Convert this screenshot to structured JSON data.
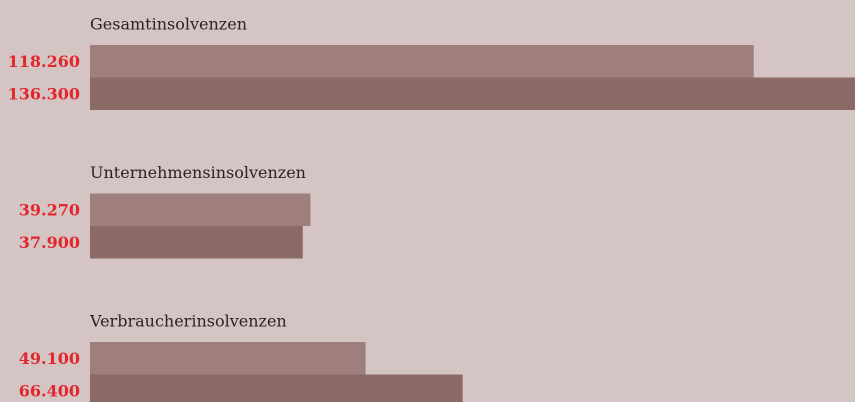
{
  "chart_data": {
    "type": "bar",
    "orientation": "horizontal",
    "categories": [
      "Gesamtinsolvenzen",
      "Unternehmensinsolvenzen",
      "Verbraucherinsolvenzen"
    ],
    "series": [
      {
        "color": "#9e7f7d",
        "values": [
          118260,
          39270,
          49100
        ],
        "value_labels": [
          "118.260",
          "39.270",
          "49.100"
        ]
      },
      {
        "color": "#8a6966",
        "values": [
          136300,
          37900,
          66400
        ],
        "value_labels": [
          "136.300",
          "37.900",
          "66.400"
        ]
      }
    ],
    "xlim": [
      0,
      136300
    ]
  }
}
